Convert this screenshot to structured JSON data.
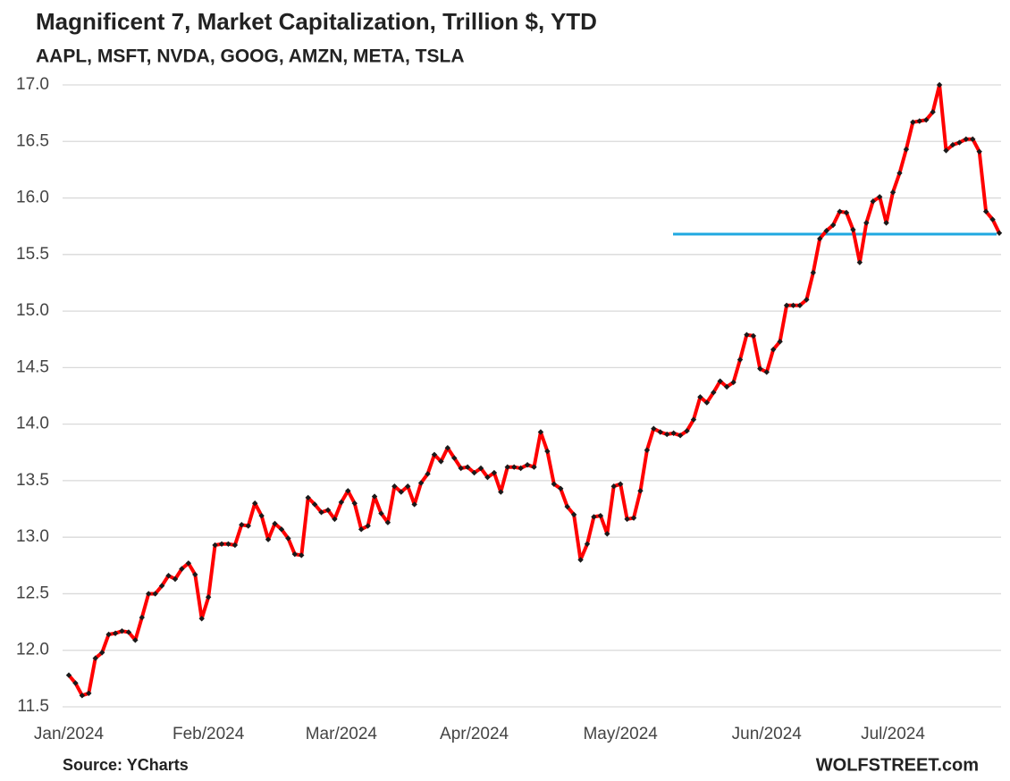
{
  "chart_data": {
    "type": "line",
    "title": "Magnificent 7, Market Capitalization, Trillion $, YTD",
    "subtitle": "AAPL, MSFT, NVDA, GOOG, AMZN, META, TSLA",
    "source": "Source: YCharts",
    "credit": "WOLFSTREET.com",
    "categories": [
      "Jan/2024",
      null,
      null,
      null,
      null,
      null,
      null,
      null,
      null,
      null,
      null,
      null,
      null,
      null,
      null,
      null,
      null,
      null,
      null,
      null,
      null,
      "Feb/2024",
      null,
      null,
      null,
      null,
      null,
      null,
      null,
      null,
      null,
      null,
      null,
      null,
      null,
      null,
      null,
      null,
      null,
      null,
      null,
      "Mar/2024",
      null,
      null,
      null,
      null,
      null,
      null,
      null,
      null,
      null,
      null,
      null,
      null,
      null,
      null,
      null,
      null,
      null,
      null,
      null,
      "Apr/2024",
      null,
      null,
      null,
      null,
      null,
      null,
      null,
      null,
      null,
      null,
      null,
      null,
      null,
      null,
      null,
      null,
      null,
      null,
      null,
      null,
      null,
      "May/2024",
      null,
      null,
      null,
      null,
      null,
      null,
      null,
      null,
      null,
      null,
      null,
      null,
      null,
      null,
      null,
      null,
      null,
      null,
      null,
      null,
      null,
      "Jun/2024",
      null,
      null,
      null,
      null,
      null,
      null,
      null,
      null,
      null,
      null,
      null,
      null,
      null,
      null,
      null,
      null,
      null,
      null,
      "Jul/2024",
      null,
      null,
      null,
      null,
      null,
      null,
      null,
      null,
      null,
      null,
      null,
      null,
      null,
      null,
      null,
      null
    ],
    "values": [
      11.78,
      11.71,
      11.6,
      11.62,
      11.93,
      11.98,
      12.14,
      12.15,
      12.17,
      12.16,
      12.09,
      12.29,
      12.5,
      12.5,
      12.57,
      12.66,
      12.63,
      12.72,
      12.77,
      12.67,
      12.28,
      12.47,
      12.93,
      12.94,
      12.94,
      12.93,
      13.11,
      13.1,
      13.3,
      13.19,
      12.98,
      13.12,
      13.07,
      12.99,
      12.85,
      12.84,
      13.35,
      13.29,
      13.22,
      13.24,
      13.16,
      13.31,
      13.41,
      13.3,
      13.07,
      13.1,
      13.36,
      13.21,
      13.13,
      13.45,
      13.4,
      13.45,
      13.29,
      13.48,
      13.56,
      13.73,
      13.67,
      13.79,
      13.7,
      13.61,
      13.62,
      13.57,
      13.61,
      13.53,
      13.57,
      13.4,
      13.62,
      13.62,
      13.61,
      13.64,
      13.62,
      13.93,
      13.76,
      13.47,
      13.43,
      13.27,
      13.2,
      12.8,
      12.94,
      13.18,
      13.19,
      13.03,
      13.45,
      13.47,
      13.16,
      13.17,
      13.41,
      13.77,
      13.96,
      13.93,
      13.91,
      13.92,
      13.9,
      13.94,
      14.04,
      14.24,
      14.19,
      14.28,
      14.38,
      14.33,
      14.37,
      14.57,
      14.79,
      14.78,
      14.49,
      14.46,
      14.66,
      14.73,
      15.05,
      15.05,
      15.05,
      15.1,
      15.34,
      15.64,
      15.71,
      15.76,
      15.88,
      15.87,
      15.72,
      15.43,
      15.78,
      15.97,
      16.01,
      15.78,
      16.05,
      16.22,
      16.43,
      16.67,
      16.68,
      16.69,
      16.76,
      17.0,
      16.42,
      16.47,
      16.49,
      16.52,
      16.52,
      16.41,
      15.88,
      15.81,
      15.69
    ],
    "color": "#ff0000",
    "marker_color": "#1a1a1a",
    "reference_line": {
      "value": 15.68,
      "color": "#1fa8e0"
    },
    "ylim": [
      11.5,
      17.0
    ],
    "yticks": [
      {
        "value": 11.5,
        "label": "11.5"
      },
      {
        "value": 12,
        "label": "12.0"
      },
      {
        "value": 12.5,
        "label": "12.5"
      },
      {
        "value": 13,
        "label": "13.0"
      },
      {
        "value": 13.5,
        "label": "13.5"
      },
      {
        "value": 14,
        "label": "14.0"
      },
      {
        "value": 14.5,
        "label": "14.5"
      },
      {
        "value": 15,
        "label": "15.0"
      },
      {
        "value": 15.5,
        "label": "15.5"
      },
      {
        "value": 16,
        "label": "16.0"
      },
      {
        "value": 16.5,
        "label": "16.5"
      },
      {
        "value": 17,
        "label": "17.0"
      }
    ],
    "grid": true
  }
}
